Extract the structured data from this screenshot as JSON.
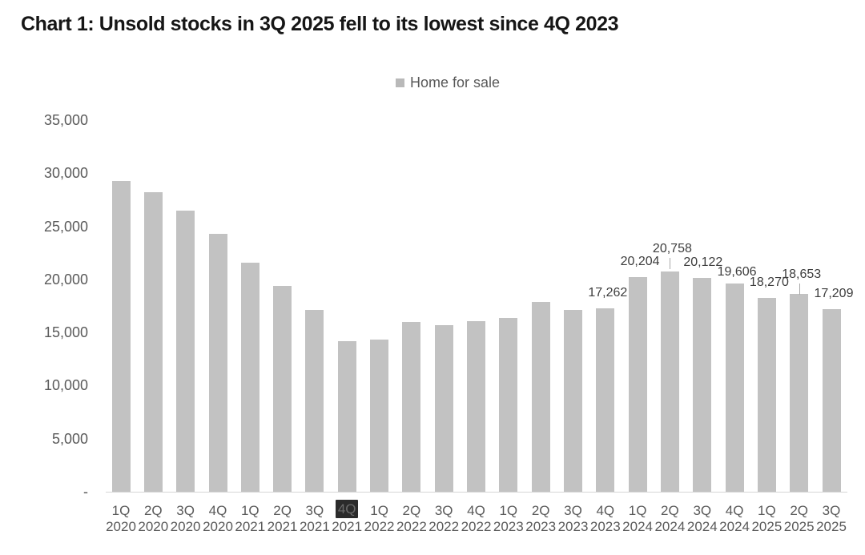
{
  "chart_data": {
    "type": "bar",
    "title": "Chart 1: Unsold stocks in 3Q 2025 fell to its lowest since 4Q 2023",
    "legend": [
      {
        "label": "Home for sale",
        "marker_color": "#b9b9b9"
      }
    ],
    "legend_position": "top-center",
    "grid": false,
    "xlabel": "",
    "ylabel": "",
    "ylim": [
      0,
      35000
    ],
    "ytick_values": [
      35000,
      30000,
      25000,
      20000,
      15000,
      10000,
      5000,
      0
    ],
    "ytick_labels": [
      "35,000",
      "30,000",
      "25,000",
      "20,000",
      "15,000",
      "10,000",
      "5,000",
      "-"
    ],
    "categories": [
      {
        "quarter": "1Q",
        "year": "2020"
      },
      {
        "quarter": "2Q",
        "year": "2020"
      },
      {
        "quarter": "3Q",
        "year": "2020"
      },
      {
        "quarter": "4Q",
        "year": "2020"
      },
      {
        "quarter": "1Q",
        "year": "2021"
      },
      {
        "quarter": "2Q",
        "year": "2021"
      },
      {
        "quarter": "3Q",
        "year": "2021"
      },
      {
        "quarter": "4Q",
        "year": "2021"
      },
      {
        "quarter": "1Q",
        "year": "2022"
      },
      {
        "quarter": "2Q",
        "year": "2022"
      },
      {
        "quarter": "3Q",
        "year": "2022"
      },
      {
        "quarter": "4Q",
        "year": "2022"
      },
      {
        "quarter": "1Q",
        "year": "2023"
      },
      {
        "quarter": "2Q",
        "year": "2023"
      },
      {
        "quarter": "3Q",
        "year": "2023"
      },
      {
        "quarter": "4Q",
        "year": "2023"
      },
      {
        "quarter": "1Q",
        "year": "2024"
      },
      {
        "quarter": "2Q",
        "year": "2024"
      },
      {
        "quarter": "3Q",
        "year": "2024"
      },
      {
        "quarter": "4Q",
        "year": "2024"
      },
      {
        "quarter": "1Q",
        "year": "2025"
      },
      {
        "quarter": "2Q",
        "year": "2025"
      },
      {
        "quarter": "3Q",
        "year": "2025"
      }
    ],
    "series": [
      {
        "name": "Home for sale",
        "values": [
          29300,
          28200,
          26500,
          24300,
          21600,
          19400,
          17100,
          14200,
          14300,
          16000,
          15700,
          16100,
          16400,
          17900,
          17100,
          17262,
          20204,
          20758,
          20122,
          19606,
          18270,
          18653,
          17209
        ]
      }
    ],
    "data_labels": [
      null,
      null,
      null,
      null,
      null,
      null,
      null,
      null,
      null,
      null,
      null,
      null,
      null,
      null,
      null,
      "17,262",
      "20,204",
      "20,758",
      "20,122",
      "19,606",
      "18,270",
      "18,653",
      "17,209"
    ],
    "highlighted_category": "4Q 2021",
    "highlighted_index": 7,
    "bar_color": "#c2c2c2",
    "axis_line_color": "#d6d6d6",
    "tick_label_color": "#595959",
    "data_label_color": "#3d3d3d",
    "highlight_bg_color": "#2b2b2b"
  }
}
